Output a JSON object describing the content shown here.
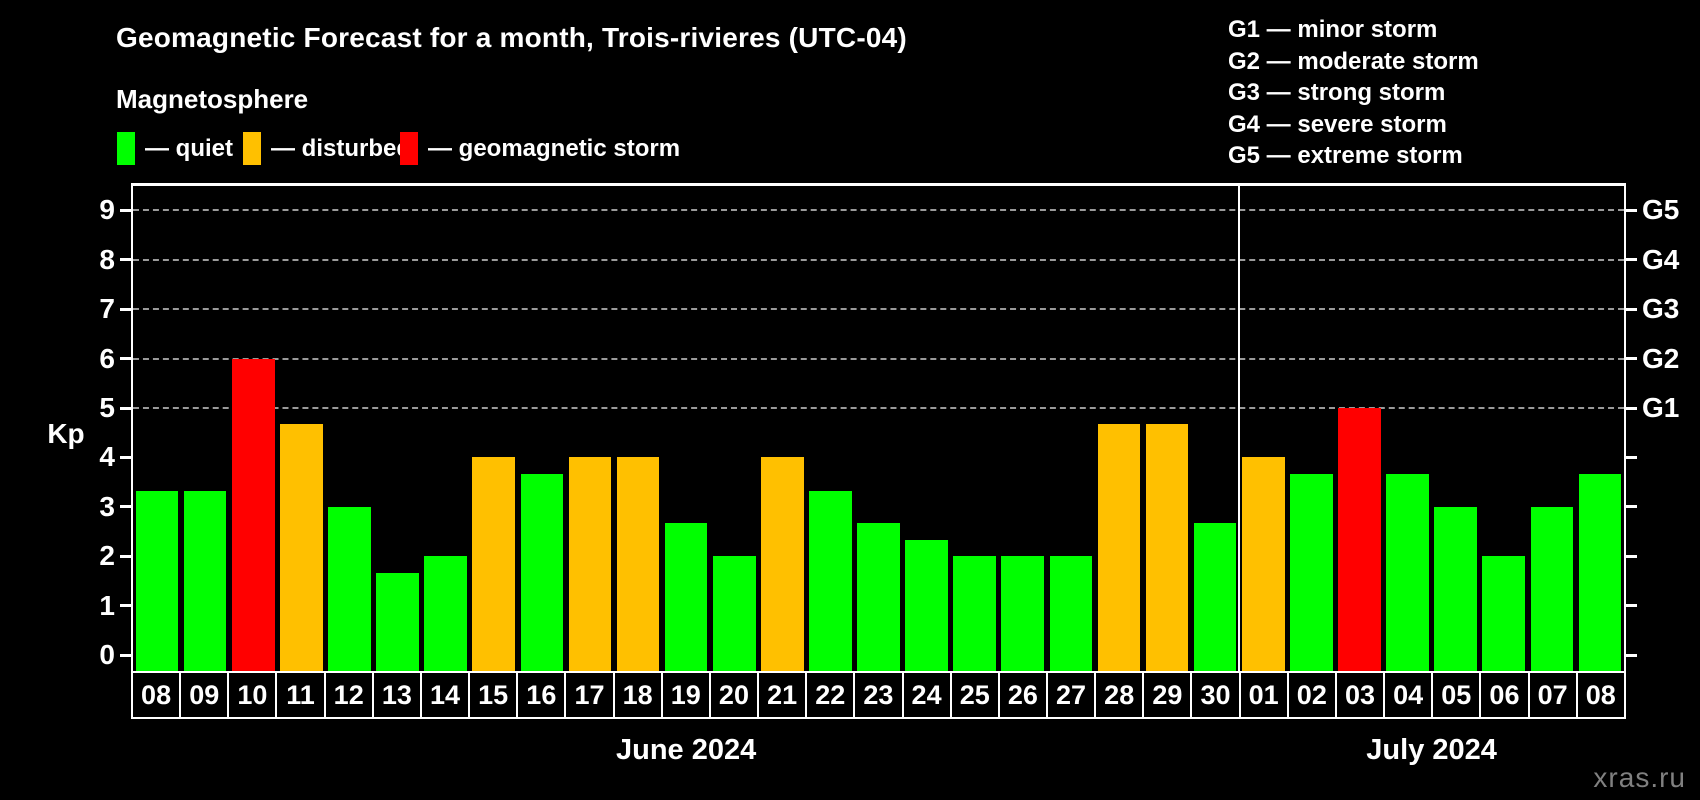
{
  "title": "Geomagnetic Forecast for a month, Trois-rivieres (UTC-04)",
  "legend": {
    "subtitle": "Magnetosphere",
    "items": [
      {
        "label": "— quiet",
        "status": "quiet"
      },
      {
        "label": "— disturbed",
        "status": "disturbed"
      },
      {
        "label": "— geomagnetic storm",
        "status": "storm"
      }
    ]
  },
  "storm_legend": {
    "lines": [
      "G1 — minor storm",
      "G2 — moderate storm",
      "G3 — strong storm",
      "G4 — severe storm",
      "G5 — extreme storm"
    ]
  },
  "watermark": "xras.ru",
  "chart_data": {
    "type": "bar",
    "title": "Geomagnetic Forecast for a month, Trois-rivieres (UTC-04)",
    "xlabel": "",
    "ylabel": "Kp",
    "ylim": [
      0,
      9
    ],
    "yticks": [
      0,
      1,
      2,
      3,
      4,
      5,
      6,
      7,
      8,
      9
    ],
    "gridline_values": [
      5,
      6,
      7,
      8,
      9
    ],
    "grid": "dashed, horizontal, at G-storm levels only",
    "legend_position": "top",
    "right_axis_labels": [
      {
        "value": 5,
        "label": "G1"
      },
      {
        "value": 6,
        "label": "G2"
      },
      {
        "value": 7,
        "label": "G3"
      },
      {
        "value": 8,
        "label": "G4"
      },
      {
        "value": 9,
        "label": "G5"
      }
    ],
    "status_colors": {
      "quiet": "#00ff00",
      "disturbed": "#ffc000",
      "storm": "#ff0000"
    },
    "months": [
      {
        "label": "June 2024",
        "bars": [
          {
            "day": "08",
            "value": 3.33,
            "status": "quiet"
          },
          {
            "day": "09",
            "value": 3.33,
            "status": "quiet"
          },
          {
            "day": "10",
            "value": 6.0,
            "status": "storm"
          },
          {
            "day": "11",
            "value": 4.67,
            "status": "disturbed"
          },
          {
            "day": "12",
            "value": 3.0,
            "status": "quiet"
          },
          {
            "day": "13",
            "value": 1.67,
            "status": "quiet"
          },
          {
            "day": "14",
            "value": 2.0,
            "status": "quiet"
          },
          {
            "day": "15",
            "value": 4.0,
            "status": "disturbed"
          },
          {
            "day": "16",
            "value": 3.67,
            "status": "quiet"
          },
          {
            "day": "17",
            "value": 4.0,
            "status": "disturbed"
          },
          {
            "day": "18",
            "value": 4.0,
            "status": "disturbed"
          },
          {
            "day": "19",
            "value": 2.67,
            "status": "quiet"
          },
          {
            "day": "20",
            "value": 2.0,
            "status": "quiet"
          },
          {
            "day": "21",
            "value": 4.0,
            "status": "disturbed"
          },
          {
            "day": "22",
            "value": 3.33,
            "status": "quiet"
          },
          {
            "day": "23",
            "value": 2.67,
            "status": "quiet"
          },
          {
            "day": "24",
            "value": 2.33,
            "status": "quiet"
          },
          {
            "day": "25",
            "value": 2.0,
            "status": "quiet"
          },
          {
            "day": "26",
            "value": 2.0,
            "status": "quiet"
          },
          {
            "day": "27",
            "value": 2.0,
            "status": "quiet"
          },
          {
            "day": "28",
            "value": 4.67,
            "status": "disturbed"
          },
          {
            "day": "29",
            "value": 4.67,
            "status": "disturbed"
          },
          {
            "day": "30",
            "value": 2.67,
            "status": "quiet"
          }
        ]
      },
      {
        "label": "July 2024",
        "bars": [
          {
            "day": "01",
            "value": 4.0,
            "status": "disturbed"
          },
          {
            "day": "02",
            "value": 3.67,
            "status": "quiet"
          },
          {
            "day": "03",
            "value": 5.0,
            "status": "storm"
          },
          {
            "day": "04",
            "value": 3.67,
            "status": "quiet"
          },
          {
            "day": "05",
            "value": 3.0,
            "status": "quiet"
          },
          {
            "day": "06",
            "value": 2.0,
            "status": "quiet"
          },
          {
            "day": "07",
            "value": 3.0,
            "status": "quiet"
          },
          {
            "day": "08",
            "value": 3.67,
            "status": "quiet"
          }
        ]
      }
    ]
  }
}
